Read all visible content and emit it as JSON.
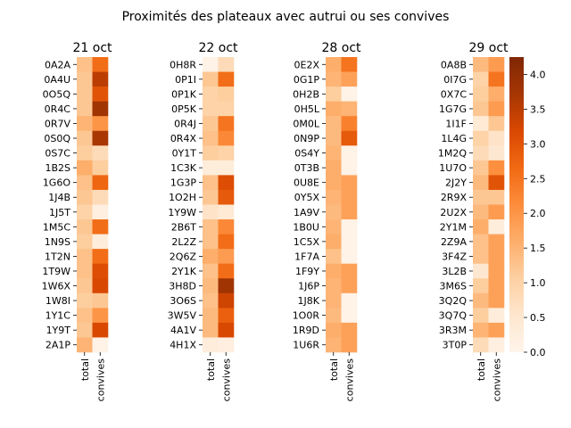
{
  "chart_data": {
    "type": "heatmap",
    "title": "Proximités des plateaux avec autrui ou ses convives",
    "columns": [
      "total",
      "convives"
    ],
    "colormap": "Oranges",
    "vmin": 0,
    "vmax": 4.25,
    "colorbar": {
      "ticks": [
        0.0,
        0.5,
        1.0,
        1.5,
        2.0,
        2.5,
        3.0,
        3.5,
        4.0
      ],
      "tick_labels": [
        "0.0",
        "0.5",
        "1.0",
        "1.5",
        "2.0",
        "2.5",
        "3.0",
        "3.5",
        "4.0"
      ]
    },
    "panels": [
      {
        "title": "21 oct",
        "rows": [
          "0A2A",
          "0A4U",
          "0O5Q",
          "0R4C",
          "0R7V",
          "0S0Q",
          "0S7C",
          "1B2S",
          "1G6O",
          "1J4B",
          "1J5T",
          "1M5C",
          "1N9S",
          "1T2N",
          "1T9W",
          "1W6X",
          "1W8I",
          "1Y1C",
          "1Y9T",
          "2A1P"
        ],
        "values": [
          [
            1.3,
            2.6
          ],
          [
            1.2,
            3.5
          ],
          [
            1.2,
            3.0
          ],
          [
            1.2,
            3.8
          ],
          [
            1.5,
            2.0
          ],
          [
            1.2,
            3.7
          ],
          [
            1.1,
            0.8
          ],
          [
            1.6,
            1.1
          ],
          [
            1.3,
            2.7
          ],
          [
            1.2,
            0.8
          ],
          [
            1.0,
            0.2
          ],
          [
            1.2,
            2.6
          ],
          [
            1.1,
            0.3
          ],
          [
            1.3,
            2.6
          ],
          [
            1.3,
            3.1
          ],
          [
            1.2,
            3.2
          ],
          [
            1.1,
            1.2
          ],
          [
            1.3,
            2.0
          ],
          [
            1.2,
            3.2
          ],
          [
            1.5,
            0.1
          ]
        ]
      },
      {
        "title": "22 oct",
        "rows": [
          "0H8R",
          "0P1I",
          "0P1K",
          "0P5K",
          "0R4J",
          "0R4X",
          "0Y1T",
          "1C3K",
          "1G3P",
          "1O2H",
          "1Y9W",
          "2B6T",
          "2L2Z",
          "2Q6Z",
          "2Y1K",
          "3H8D",
          "3O6S",
          "3W5V",
          "4A1V",
          "4H1X"
        ],
        "values": [
          [
            0.1,
            0.8
          ],
          [
            1.2,
            2.6
          ],
          [
            1.0,
            1.1
          ],
          [
            1.0,
            1.0
          ],
          [
            1.2,
            2.5
          ],
          [
            1.3,
            2.2
          ],
          [
            1.1,
            1.0
          ],
          [
            0.3,
            0.3
          ],
          [
            1.3,
            3.1
          ],
          [
            1.2,
            2.9
          ],
          [
            0.6,
            0.4
          ],
          [
            1.3,
            2.2
          ],
          [
            1.3,
            2.6
          ],
          [
            1.6,
            1.9
          ],
          [
            1.3,
            2.6
          ],
          [
            1.4,
            3.8
          ],
          [
            1.3,
            3.3
          ],
          [
            1.4,
            2.8
          ],
          [
            1.4,
            3.2
          ],
          [
            0.3,
            0.2
          ]
        ]
      },
      {
        "title": "28 oct",
        "rows": [
          "0E2X",
          "0G1P",
          "0H2B",
          "0H5L",
          "0M0L",
          "0N9P",
          "0S4Y",
          "0T3B",
          "0U8E",
          "0Y5X",
          "1A9V",
          "1B0U",
          "1C5X",
          "1F7A",
          "1F9Y",
          "1J6P",
          "1J8K",
          "1O0R",
          "1R9D",
          "1U6R"
        ],
        "values": [
          [
            1.6,
            2.5
          ],
          [
            1.5,
            1.8
          ],
          [
            1.1,
            0.1
          ],
          [
            1.6,
            1.5
          ],
          [
            1.4,
            2.3
          ],
          [
            1.4,
            2.9
          ],
          [
            1.5,
            0.1
          ],
          [
            1.6,
            0.1
          ],
          [
            1.6,
            1.8
          ],
          [
            1.5,
            1.8
          ],
          [
            1.4,
            1.8
          ],
          [
            1.5,
            0.1
          ],
          [
            1.6,
            0.1
          ],
          [
            1.3,
            0.1
          ],
          [
            1.6,
            1.8
          ],
          [
            1.5,
            1.8
          ],
          [
            1.5,
            0.1
          ],
          [
            1.4,
            0.1
          ],
          [
            1.6,
            1.8
          ],
          [
            1.5,
            1.8
          ]
        ]
      },
      {
        "title": "29 oct",
        "rows": [
          "0A8B",
          "0I7G",
          "0X7C",
          "1G7G",
          "1I1F",
          "1L4G",
          "1M2Q",
          "1U7O",
          "2J2Y",
          "2R9X",
          "2U2X",
          "2Y1M",
          "2Z9A",
          "3F4Z",
          "3L2B",
          "3M6S",
          "3Q2Q",
          "3Q7Q",
          "3R3M",
          "3T0P"
        ],
        "values": [
          [
            1.4,
            1.9
          ],
          [
            1.0,
            2.5
          ],
          [
            1.1,
            1.6
          ],
          [
            1.2,
            1.9
          ],
          [
            0.4,
            1.2
          ],
          [
            1.0,
            0.6
          ],
          [
            0.8,
            0.5
          ],
          [
            1.2,
            2.1
          ],
          [
            1.4,
            3.0
          ],
          [
            1.2,
            1.2
          ],
          [
            1.4,
            1.9
          ],
          [
            1.6,
            0.3
          ],
          [
            1.3,
            1.8
          ],
          [
            1.3,
            1.8
          ],
          [
            0.5,
            1.8
          ],
          [
            1.1,
            1.8
          ],
          [
            1.4,
            1.8
          ],
          [
            1.1,
            0.3
          ],
          [
            1.5,
            1.8
          ],
          [
            0.8,
            0.2
          ]
        ]
      }
    ]
  }
}
